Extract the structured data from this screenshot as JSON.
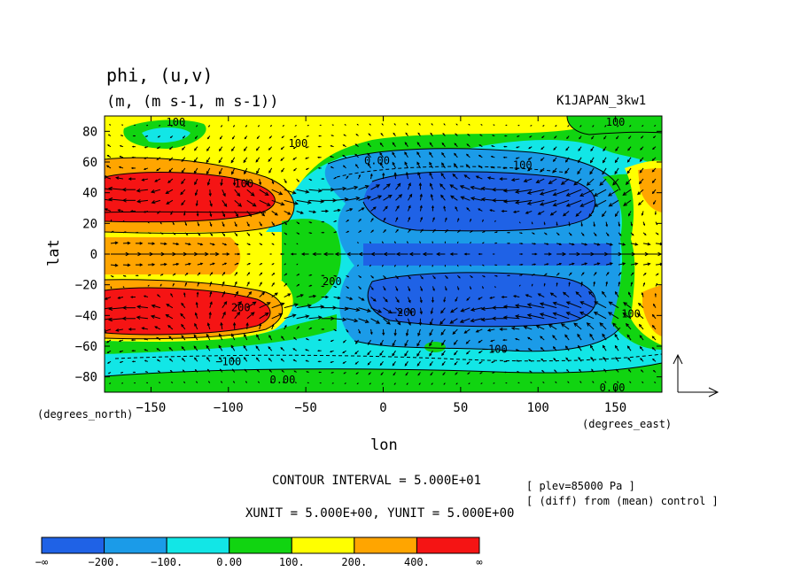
{
  "title": "phi, (u,v)",
  "subtitle": "(m, (m s-1, m s-1))",
  "run_label": "K1JAPAN_3kw1",
  "chart_data": {
    "type": "heatmap",
    "variable": "phi",
    "vectors": "(u,v)",
    "xlabel": "lon",
    "ylabel": "lat",
    "x_units_label": "(degrees_east)",
    "y_units_label": "(degrees_north)",
    "xlim": [
      -180,
      180
    ],
    "ylim": [
      -90,
      90
    ],
    "x_ticks": [
      -150,
      -100,
      -50,
      0,
      50,
      100,
      150
    ],
    "y_ticks": [
      80,
      60,
      40,
      20,
      0,
      -20,
      -40,
      -60,
      -80
    ],
    "x_tick_labels": [
      "−150",
      "−100",
      "−50",
      "0",
      "50",
      "100",
      "150"
    ],
    "y_tick_labels": [
      "80",
      "60",
      "40",
      "20",
      "0",
      "−20",
      "−40",
      "−60",
      "−80"
    ],
    "contour_interval_text": "CONTOUR INTERVAL = 5.000E+01",
    "vector_unit_text": "XUNIT = 5.000E+00, YUNIT = 5.000E+00",
    "info_lines": [
      "[ plev=85000 Pa ]",
      "[ (diff) from (mean) control ]"
    ],
    "colorbar": {
      "colors": [
        "#1f62e6",
        "#1b9be8",
        "#12e6e6",
        "#11d411",
        "#ffff00",
        "#ffa500",
        "#f51414"
      ],
      "labels": [
        "−∞",
        "−200.",
        "−100.",
        "0.00",
        "100.",
        "200.",
        "400.",
        "∞"
      ]
    },
    "contour_labels": [
      {
        "text": "100",
        "lon": -134,
        "lat": 86
      },
      {
        "text": "100",
        "lon": -55,
        "lat": 72
      },
      {
        "text": "0.00",
        "lon": -4,
        "lat": 61
      },
      {
        "text": "100",
        "lon": 90,
        "lat": 58
      },
      {
        "text": "100",
        "lon": 150,
        "lat": 86
      },
      {
        "text": "100",
        "lon": -90,
        "lat": 46
      },
      {
        "text": "200",
        "lon": -92,
        "lat": -35
      },
      {
        "text": "200",
        "lon": -33,
        "lat": -18
      },
      {
        "text": "−200",
        "lon": 13,
        "lat": -38
      },
      {
        "text": "−100",
        "lon": -100,
        "lat": -70
      },
      {
        "text": "−100",
        "lon": 72,
        "lat": -62
      },
      {
        "text": "0.00",
        "lon": -65,
        "lat": -82
      },
      {
        "text": "0.00",
        "lon": 148,
        "lat": -87
      },
      {
        "text": "100",
        "lon": 160,
        "lat": -39
      }
    ]
  }
}
